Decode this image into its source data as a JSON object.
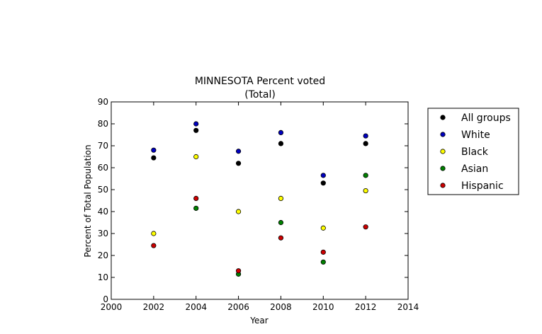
{
  "chart_data": {
    "type": "scatter",
    "title": "MINNESOTA Percent voted",
    "subtitle": "(Total)",
    "xlabel": "Year",
    "ylabel": "Percent of Total Population",
    "xlim": [
      2000,
      2014
    ],
    "ylim": [
      0,
      90
    ],
    "xticks": [
      2000,
      2002,
      2004,
      2006,
      2008,
      2010,
      2012,
      2014
    ],
    "yticks": [
      0,
      10,
      20,
      30,
      40,
      50,
      60,
      70,
      80,
      90
    ],
    "grid": false,
    "legend_position": "right-outside",
    "x": [
      2002,
      2004,
      2006,
      2008,
      2010,
      2012
    ],
    "series": [
      {
        "name": "All groups",
        "color": "#000000",
        "values": [
          64.5,
          77,
          62,
          71,
          53,
          71
        ]
      },
      {
        "name": "White",
        "color": "#0000bf",
        "values": [
          68,
          80,
          67.5,
          76,
          56.5,
          74.5
        ]
      },
      {
        "name": "Black",
        "color": "#ffff00",
        "values": [
          30,
          65,
          40,
          46,
          32.5,
          49.5
        ]
      },
      {
        "name": "Asian",
        "color": "#008000",
        "values": [
          null,
          41.5,
          11.5,
          35,
          17,
          56.5
        ]
      },
      {
        "name": "Hispanic",
        "color": "#cc0000",
        "values": [
          24.5,
          46,
          13,
          28,
          21.5,
          33
        ]
      }
    ]
  }
}
